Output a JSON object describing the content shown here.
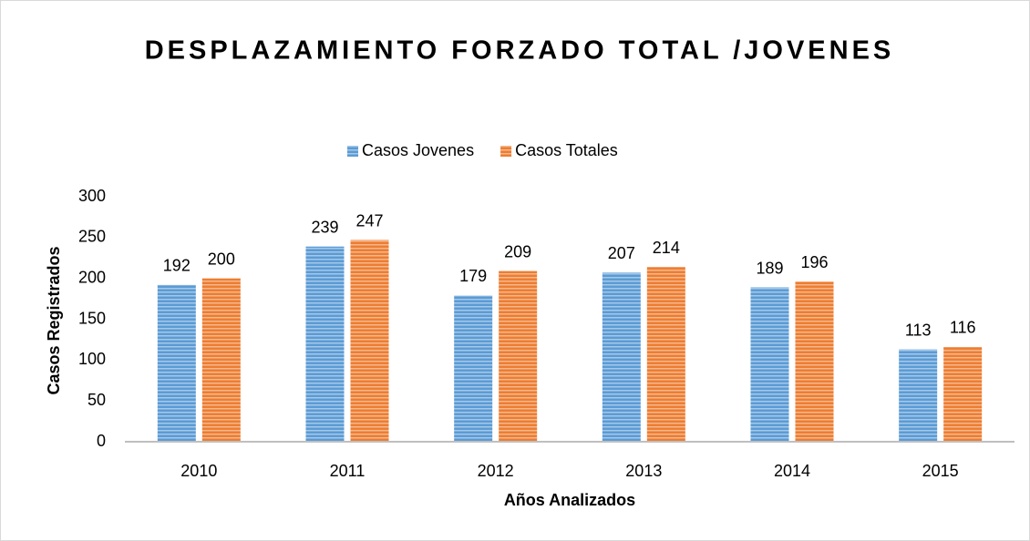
{
  "chart_data": {
    "type": "bar",
    "title": "DESPLAZAMIENTO FORZADO TOTAL /JOVENES",
    "x_label": "Años Analizados",
    "y_label": "Casos Registrados",
    "categories": [
      "2010",
      "2011",
      "2012",
      "2013",
      "2014",
      "2015"
    ],
    "series": [
      {
        "name": "Casos Jovenes",
        "color": "#5b9bd5",
        "values": [
          192,
          239,
          179,
          207,
          189,
          113
        ]
      },
      {
        "name": "Casos Totales",
        "color": "#ed7d31",
        "values": [
          200,
          247,
          209,
          214,
          196,
          116
        ]
      }
    ],
    "ylim": [
      0,
      300
    ],
    "yticks": [
      0,
      50,
      100,
      150,
      200,
      250,
      300
    ],
    "grid": false,
    "legend": "top"
  }
}
